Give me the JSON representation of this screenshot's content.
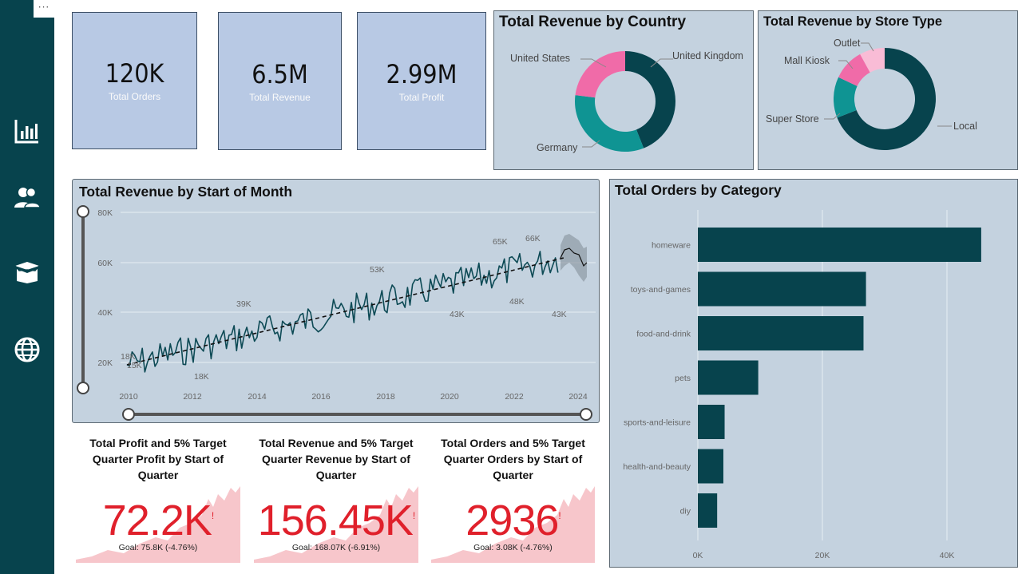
{
  "menu": {
    "more": "···"
  },
  "sidebar": {
    "icons": [
      "bar-chart-icon",
      "users-icon",
      "box-icon",
      "globe-icon"
    ]
  },
  "kpis": [
    {
      "value": "120K",
      "label": "Total Orders"
    },
    {
      "value": "6.5M",
      "label": "Total Revenue"
    },
    {
      "value": "2.99M",
      "label": "Total Profit"
    }
  ],
  "country_donut": {
    "title": "Total Revenue by Country",
    "segments": [
      {
        "label": "United Kingdom",
        "share": 0.44,
        "color": "#07434d"
      },
      {
        "label": "Germany",
        "share": 0.33,
        "color": "#0f9493"
      },
      {
        "label": "United States",
        "share": 0.23,
        "color": "#f06ba8"
      }
    ]
  },
  "store_donut": {
    "title": "Total Revenue by Store Type",
    "segments": [
      {
        "label": "Local",
        "share": 0.69,
        "color": "#07434d"
      },
      {
        "label": "Super Store",
        "share": 0.13,
        "color": "#0f9493"
      },
      {
        "label": "Mall Kiosk",
        "share": 0.1,
        "color": "#f06ba8"
      },
      {
        "label": "Outlet",
        "share": 0.08,
        "color": "#f9bcd6"
      }
    ]
  },
  "line_chart": {
    "title": "Total Revenue by Start of Month",
    "y_ticks": [
      "80K",
      "60K",
      "40K",
      "20K"
    ],
    "x_ticks": [
      "2010",
      "2012",
      "2014",
      "2016",
      "2018",
      "2020",
      "2022",
      "2024"
    ],
    "annotations": [
      "18K",
      "15K",
      "18K",
      "39K",
      "53K",
      "43K",
      "65K",
      "48K",
      "66K",
      "43K"
    ]
  },
  "bar_chart": {
    "title": "Total Orders by Category",
    "categories": [
      "homeware",
      "toys-and-games",
      "food-and-drink",
      "pets",
      "sports-and-leisure",
      "health-and-beauty",
      "diy"
    ],
    "values": [
      45500,
      27000,
      26600,
      9700,
      4300,
      4100,
      3100
    ],
    "x_ticks": [
      "0K",
      "20K",
      "40K"
    ],
    "xlim": [
      0,
      50000
    ],
    "color": "#07434d"
  },
  "goals": [
    {
      "title": "Total Profit and 5% Target Quarter Profit by Start of Quarter",
      "value": "72.2K",
      "flag": "!",
      "goal": "Goal: 75.8K (-4.76%)"
    },
    {
      "title": "Total Revenue and 5% Target Quarter Revenue by Start of Quarter",
      "value": "156.45K",
      "flag": "!",
      "goal": "Goal: 168.07K (-6.91%)"
    },
    {
      "title": "Total Orders and 5% Target Quarter Orders by Start of Quarter",
      "value": "2936",
      "flag": "!",
      "goal": "Goal: 3.08K (-4.76%)"
    }
  ]
}
